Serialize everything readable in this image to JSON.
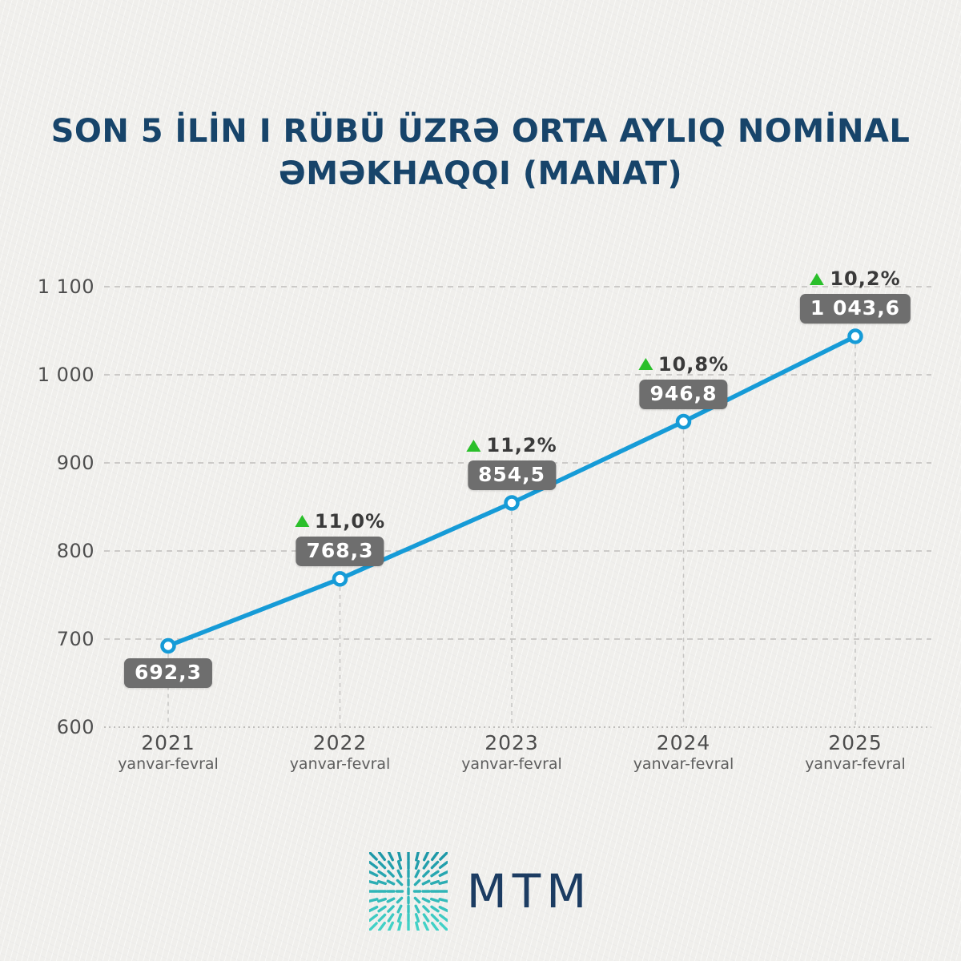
{
  "title": {
    "line1": "SON 5 İLİN I RÜBÜ ÜZRƏ ORTA AYLIQ NOMİNAL",
    "line2": "ƏMƏKHAQQI (MANAT)"
  },
  "chart_data": {
    "type": "line",
    "x": [
      "2021",
      "2022",
      "2023",
      "2024",
      "2025"
    ],
    "x_sublabel": "yanvar-fevral",
    "values": [
      692.3,
      768.3,
      854.5,
      946.8,
      1043.6
    ],
    "value_labels": [
      "692,3",
      "768,3",
      "854,5",
      "946,8",
      "1 043,6"
    ],
    "growth_labels": [
      "",
      "11,0%",
      "11,2%",
      "10,8%",
      "10,2%"
    ],
    "ylim": [
      600,
      1100
    ],
    "yticks": [
      600,
      700,
      800,
      900,
      1000,
      1100
    ],
    "ytick_labels": [
      "600",
      "700",
      "800",
      "900",
      "1 000",
      "1 100"
    ],
    "grid": true,
    "legend": "none",
    "line_color": "#169bd7",
    "marker": "open-circle",
    "marker_fill": "#ffffff",
    "label_box_color": "#6e6e6e",
    "label_text_color": "#ffffff",
    "growth_triangle_color": "#2abf2a",
    "growth_text_color": "#3a3a3a",
    "gridline_color": "#bfbebc"
  },
  "logo": {
    "text": "MTM",
    "text_color": "#1c3c62",
    "mark_icon": "teal-starburst-grid",
    "mark_color_start": "#1e98a8",
    "mark_color_end": "#41d1c6"
  }
}
